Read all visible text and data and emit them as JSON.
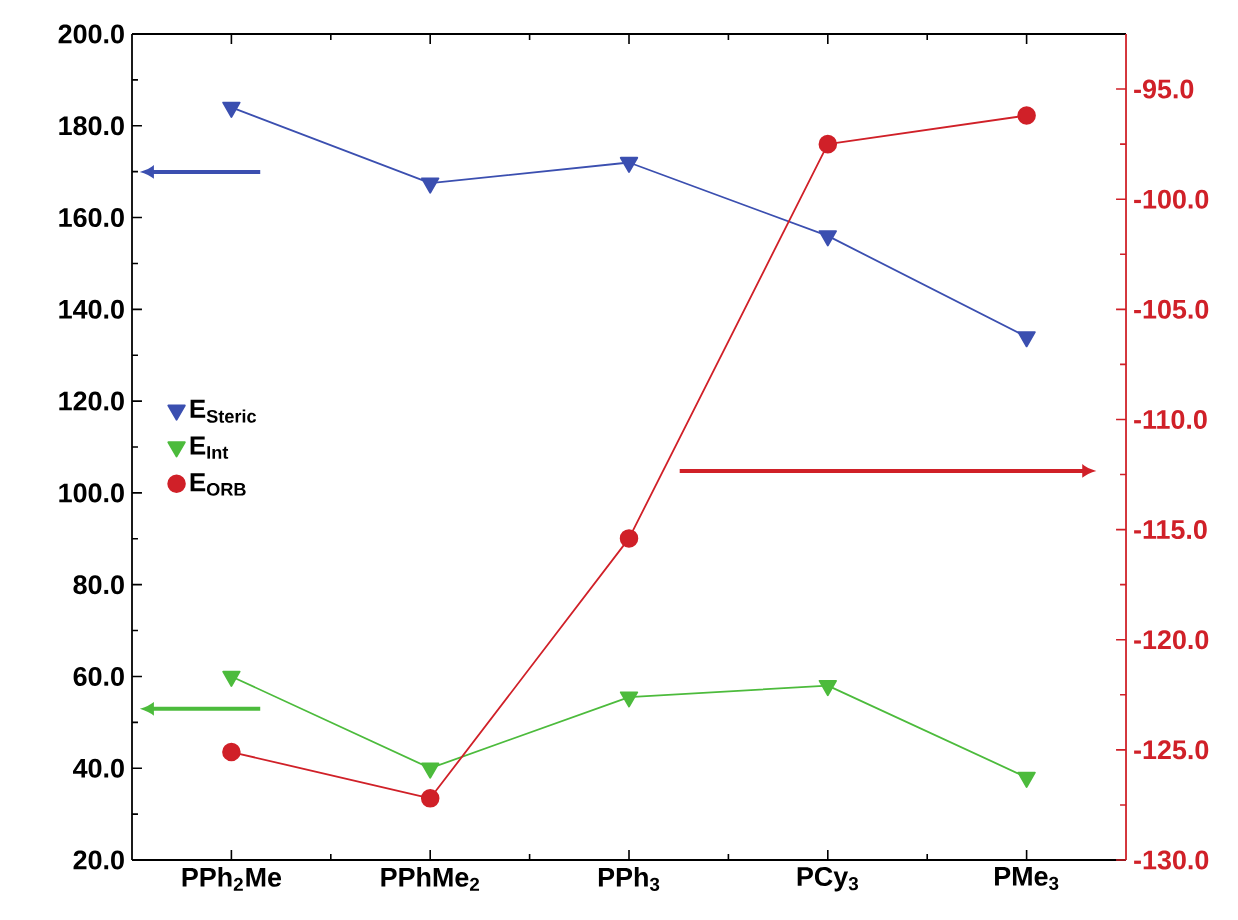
{
  "chart_data": {
    "type": "line",
    "categories": [
      "PPh$_{2}$Me",
      "PPhMe$_{2}$",
      "PPh$_{3}$",
      "PCy$_{3}$",
      "PMe$_{3}$"
    ],
    "series": [
      {
        "name": "E$_{Steric}$",
        "color": "#3b4fb0",
        "marker": "triangle_down",
        "values": [
          184,
          167.5,
          172,
          156,
          134
        ]
      },
      {
        "name": "E$_{Int}$",
        "color": "#4cbb3c",
        "marker": "triangle_down",
        "values": [
          60,
          40,
          55.5,
          58,
          38
        ]
      },
      {
        "name": "E$_{ORB}$",
        "color": "#d02028",
        "marker": "circle",
        "axis": "y2",
        "values": [
          -125.1,
          -127.2,
          -115.4,
          -97.5,
          -96.2
        ]
      }
    ],
    "ylim": [
      20,
      200
    ],
    "yticks": [
      {
        "value": 20,
        "label": "20.0"
      },
      {
        "value": 40,
        "label": "40.0"
      },
      {
        "value": 60,
        "label": "60.0"
      },
      {
        "value": 80,
        "label": "80.0"
      },
      {
        "value": 100,
        "label": "100.0"
      },
      {
        "value": 120,
        "label": "120.0"
      },
      {
        "value": 140,
        "label": "140.0"
      },
      {
        "value": 160,
        "label": "160.0"
      },
      {
        "value": 180,
        "label": "180.0"
      },
      {
        "value": 200,
        "label": "200.0"
      }
    ],
    "y2lim": [
      -130,
      -92.5
    ],
    "y2ticks": [
      {
        "value": -130,
        "label": "-130.0"
      },
      {
        "value": -125,
        "label": "-125.0"
      },
      {
        "value": -120,
        "label": "-120.0"
      },
      {
        "value": -115,
        "label": "-115.0"
      },
      {
        "value": -110,
        "label": "-110.0"
      },
      {
        "value": -105,
        "label": "-105.0"
      },
      {
        "value": -100,
        "label": "-100.0"
      },
      {
        "value": -95,
        "label": "-95.0"
      }
    ],
    "grid": false,
    "legend": "left"
  }
}
